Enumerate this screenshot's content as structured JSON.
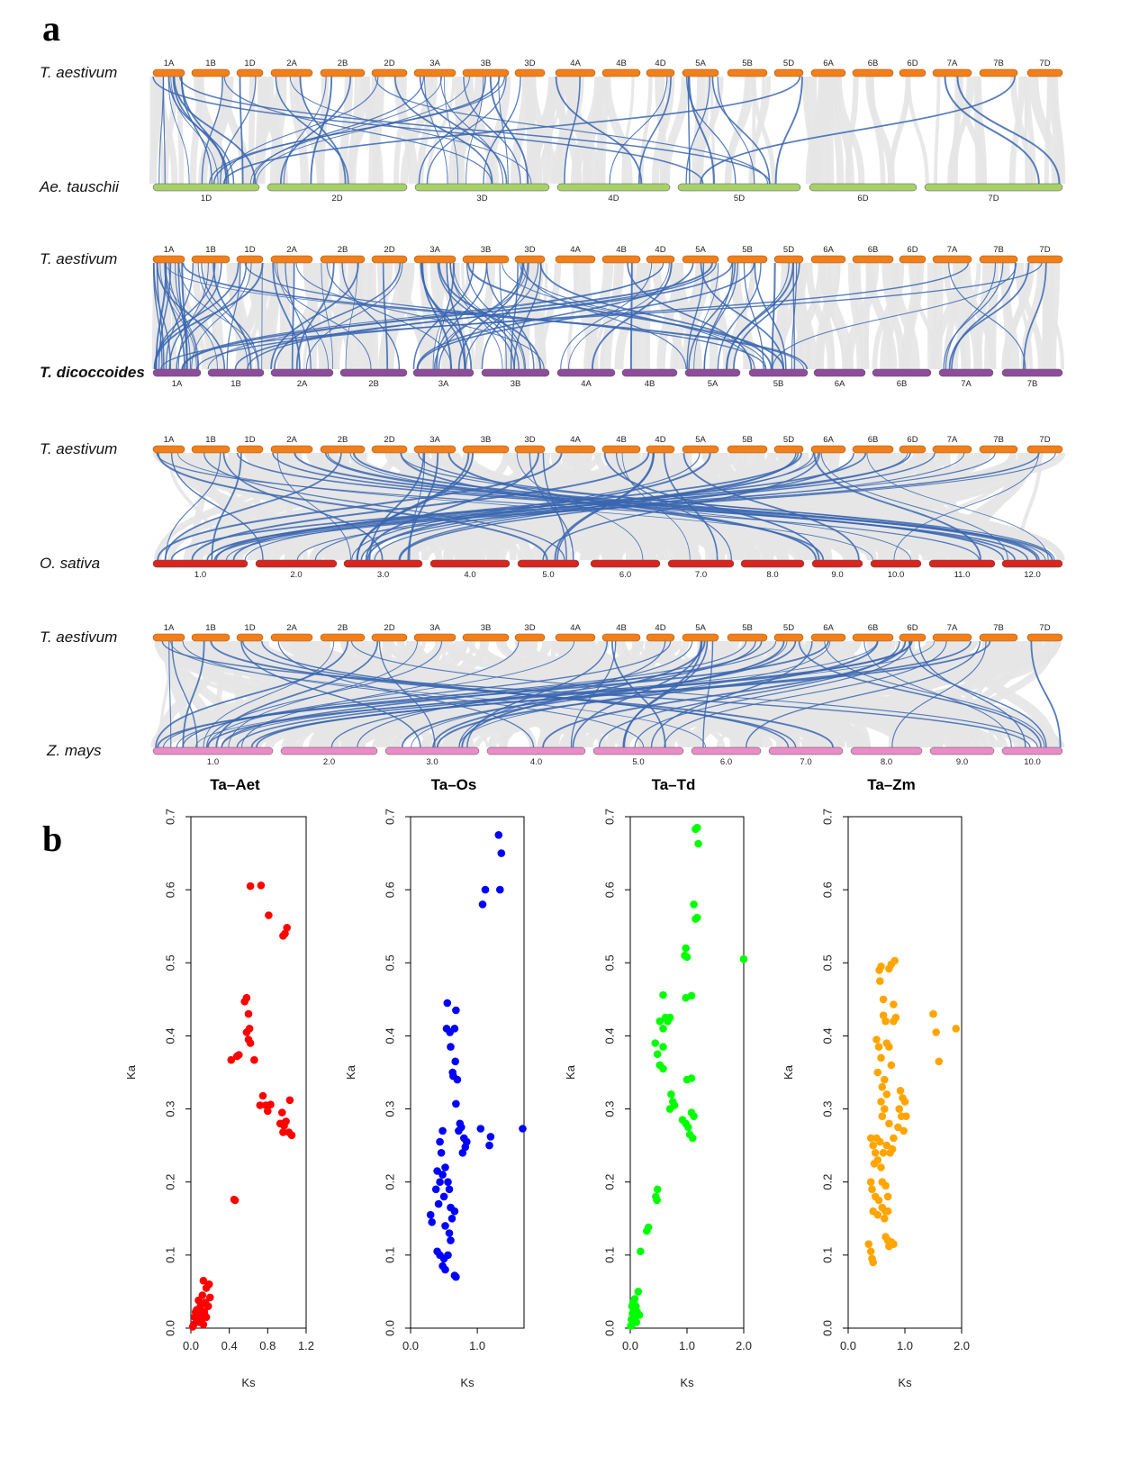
{
  "panel_labels": {
    "a": "a",
    "b": "b"
  },
  "colors": {
    "t_aestivum": "#f07f1c",
    "ae_tauschii": "#a6d06a",
    "t_dicoccoides": "#8e4c9c",
    "o_sativa": "#d9241f",
    "z_mays": "#ea8cc7",
    "link_highlight": "#3a66b0",
    "link_background": "#e6e6e6",
    "ta_aet": "#ff0000",
    "ta_os": "#0000ff",
    "ta_td": "#00ff00",
    "ta_zm": "#ffa500"
  },
  "synteny": {
    "t_aestivum_chromosomes": [
      "1A",
      "1B",
      "1D",
      "2A",
      "2B",
      "2D",
      "3A",
      "3B",
      "3D",
      "4A",
      "4B",
      "4D",
      "5A",
      "5B",
      "5D",
      "6A",
      "6B",
      "6D",
      "7A",
      "7B",
      "7D"
    ],
    "comparisons": [
      {
        "top_species": "T. aestivum",
        "bottom_species": "Ae. tauschii",
        "bottom_chromosomes": [
          "1D",
          "2D",
          "3D",
          "4D",
          "5D",
          "6D",
          "7D"
        ]
      },
      {
        "top_species": "T. aestivum",
        "bottom_species": "T. dicoccoides",
        "bottom_chromosomes": [
          "1A",
          "1B",
          "2A",
          "2B",
          "3A",
          "3B",
          "4A",
          "4B",
          "5A",
          "5B",
          "6A",
          "6B",
          "7A",
          "7B"
        ]
      },
      {
        "top_species": "T. aestivum",
        "bottom_species": "O. sativa",
        "bottom_chromosomes": [
          "1.0",
          "2.0",
          "3.0",
          "4.0",
          "5.0",
          "6.0",
          "7.0",
          "8.0",
          "9.0",
          "10.0",
          "11.0",
          "12.0"
        ]
      },
      {
        "top_species": "T. aestivum",
        "bottom_species": "Z. mays",
        "bottom_chromosomes": [
          "1.0",
          "2.0",
          "3.0",
          "4.0",
          "5.0",
          "6.0",
          "7.0",
          "8.0",
          "9.0",
          "10.0"
        ]
      }
    ]
  },
  "chart_data": [
    {
      "type": "scatter",
      "title": "Ta–Aet",
      "xlabel": "Ks",
      "ylabel": "Ka",
      "xlim": [
        0,
        1.2
      ],
      "ylim": [
        0,
        0.7
      ],
      "xticks": [
        "0.0",
        "0.4",
        "0.8",
        "1.2"
      ],
      "yticks": [
        "0.0",
        "0.1",
        "0.2",
        "0.3",
        "0.4",
        "0.5",
        "0.6",
        "0.7"
      ],
      "points": [
        [
          0.62,
          0.605
        ],
        [
          0.73,
          0.606
        ],
        [
          0.81,
          0.565
        ],
        [
          0.98,
          0.54
        ],
        [
          1.0,
          0.548
        ],
        [
          0.96,
          0.537
        ],
        [
          0.58,
          0.452
        ],
        [
          0.56,
          0.447
        ],
        [
          0.6,
          0.43
        ],
        [
          0.61,
          0.41
        ],
        [
          0.58,
          0.405
        ],
        [
          0.6,
          0.395
        ],
        [
          0.62,
          0.39
        ],
        [
          0.48,
          0.372
        ],
        [
          0.42,
          0.367
        ],
        [
          0.66,
          0.367
        ],
        [
          0.5,
          0.374
        ],
        [
          0.75,
          0.318
        ],
        [
          0.72,
          0.305
        ],
        [
          0.78,
          0.305
        ],
        [
          0.83,
          0.306
        ],
        [
          0.8,
          0.297
        ],
        [
          1.03,
          0.312
        ],
        [
          0.95,
          0.295
        ],
        [
          0.93,
          0.28
        ],
        [
          0.97,
          0.277
        ],
        [
          0.96,
          0.268
        ],
        [
          1.02,
          0.268
        ],
        [
          1.05,
          0.264
        ],
        [
          0.99,
          0.283
        ],
        [
          0.45,
          0.176
        ],
        [
          0.46,
          0.175
        ],
        [
          0.13,
          0.065
        ],
        [
          0.19,
          0.06
        ],
        [
          0.16,
          0.055
        ],
        [
          0.2,
          0.042
        ],
        [
          0.12,
          0.045
        ],
        [
          0.08,
          0.038
        ],
        [
          0.15,
          0.035
        ],
        [
          0.18,
          0.03
        ],
        [
          0.1,
          0.03
        ],
        [
          0.06,
          0.025
        ],
        [
          0.14,
          0.022
        ],
        [
          0.09,
          0.02
        ],
        [
          0.04,
          0.015
        ],
        [
          0.11,
          0.012
        ],
        [
          0.07,
          0.01
        ],
        [
          0.03,
          0.005
        ],
        [
          0.13,
          0.005
        ],
        [
          0.16,
          0.015
        ],
        [
          0.05,
          0.022
        ],
        [
          0.09,
          0.008
        ],
        [
          0.02,
          0.002
        ]
      ]
    },
    {
      "type": "scatter",
      "title": "Ta–Os",
      "xlabel": "Ks",
      "ylabel": "Ka",
      "xlim": [
        0,
        1.7
      ],
      "ylim": [
        0,
        0.7
      ],
      "xticks": [
        "0.0",
        "1.0"
      ],
      "yticks": [
        "0.0",
        "0.1",
        "0.2",
        "0.3",
        "0.4",
        "0.5",
        "0.6",
        "0.7"
      ],
      "points": [
        [
          1.32,
          0.675
        ],
        [
          1.36,
          0.65
        ],
        [
          1.34,
          0.6
        ],
        [
          1.12,
          0.6
        ],
        [
          1.08,
          0.58
        ],
        [
          1.68,
          0.273
        ],
        [
          0.55,
          0.445
        ],
        [
          0.68,
          0.435
        ],
        [
          0.54,
          0.41
        ],
        [
          0.59,
          0.405
        ],
        [
          0.66,
          0.41
        ],
        [
          0.6,
          0.385
        ],
        [
          0.67,
          0.365
        ],
        [
          0.63,
          0.35
        ],
        [
          0.7,
          0.34
        ],
        [
          0.64,
          0.345
        ],
        [
          0.68,
          0.307
        ],
        [
          0.74,
          0.28
        ],
        [
          0.76,
          0.275
        ],
        [
          0.72,
          0.27
        ],
        [
          1.05,
          0.273
        ],
        [
          0.8,
          0.26
        ],
        [
          1.2,
          0.262
        ],
        [
          1.18,
          0.25
        ],
        [
          0.82,
          0.248
        ],
        [
          0.78,
          0.24
        ],
        [
          0.84,
          0.255
        ],
        [
          0.48,
          0.27
        ],
        [
          0.44,
          0.255
        ],
        [
          0.46,
          0.24
        ],
        [
          0.52,
          0.22
        ],
        [
          0.4,
          0.215
        ],
        [
          0.48,
          0.21
        ],
        [
          0.44,
          0.2
        ],
        [
          0.38,
          0.19
        ],
        [
          0.5,
          0.18
        ],
        [
          0.42,
          0.17
        ],
        [
          0.56,
          0.2
        ],
        [
          0.58,
          0.19
        ],
        [
          0.6,
          0.165
        ],
        [
          0.66,
          0.16
        ],
        [
          0.62,
          0.15
        ],
        [
          0.3,
          0.155
        ],
        [
          0.32,
          0.145
        ],
        [
          0.52,
          0.14
        ],
        [
          0.58,
          0.13
        ],
        [
          0.6,
          0.12
        ],
        [
          0.4,
          0.105
        ],
        [
          0.44,
          0.1
        ],
        [
          0.5,
          0.095
        ],
        [
          0.56,
          0.1
        ],
        [
          0.48,
          0.085
        ],
        [
          0.52,
          0.08
        ],
        [
          0.68,
          0.07
        ],
        [
          0.66,
          0.072
        ]
      ]
    },
    {
      "type": "scatter",
      "title": "Ta–Td",
      "xlabel": "Ks",
      "ylabel": "Ka",
      "xlim": [
        0,
        2.0
      ],
      "ylim": [
        0,
        0.7
      ],
      "xticks": [
        "0.0",
        "1.0",
        "2.0"
      ],
      "yticks": [
        "0.0",
        "0.1",
        "0.2",
        "0.3",
        "0.4",
        "0.5",
        "0.6",
        "0.7"
      ],
      "points": [
        [
          1.15,
          0.683
        ],
        [
          1.18,
          0.685
        ],
        [
          1.2,
          0.663
        ],
        [
          1.12,
          0.58
        ],
        [
          1.15,
          0.56
        ],
        [
          1.18,
          0.562
        ],
        [
          2.0,
          0.505
        ],
        [
          0.98,
          0.52
        ],
        [
          0.96,
          0.51
        ],
        [
          1.0,
          0.508
        ],
        [
          1.08,
          0.455
        ],
        [
          0.98,
          0.452
        ],
        [
          0.58,
          0.456
        ],
        [
          0.62,
          0.425
        ],
        [
          0.66,
          0.42
        ],
        [
          0.52,
          0.42
        ],
        [
          0.58,
          0.41
        ],
        [
          0.7,
          0.425
        ],
        [
          0.44,
          0.39
        ],
        [
          0.58,
          0.385
        ],
        [
          0.48,
          0.375
        ],
        [
          0.52,
          0.36
        ],
        [
          0.58,
          0.355
        ],
        [
          0.72,
          0.32
        ],
        [
          0.75,
          0.31
        ],
        [
          0.7,
          0.3
        ],
        [
          0.78,
          0.305
        ],
        [
          1.0,
          0.34
        ],
        [
          1.08,
          0.342
        ],
        [
          0.92,
          0.285
        ],
        [
          0.98,
          0.28
        ],
        [
          1.02,
          0.275
        ],
        [
          1.08,
          0.295
        ],
        [
          1.12,
          0.29
        ],
        [
          1.05,
          0.265
        ],
        [
          1.1,
          0.26
        ],
        [
          0.48,
          0.19
        ],
        [
          0.45,
          0.18
        ],
        [
          0.47,
          0.175
        ],
        [
          0.32,
          0.138
        ],
        [
          0.29,
          0.133
        ],
        [
          0.18,
          0.105
        ],
        [
          0.14,
          0.05
        ],
        [
          0.08,
          0.04
        ],
        [
          0.05,
          0.035
        ],
        [
          0.1,
          0.03
        ],
        [
          0.03,
          0.03
        ],
        [
          0.06,
          0.025
        ],
        [
          0.12,
          0.022
        ],
        [
          0.04,
          0.02
        ],
        [
          0.16,
          0.018
        ],
        [
          0.09,
          0.015
        ],
        [
          0.02,
          0.012
        ],
        [
          0.07,
          0.01
        ],
        [
          0.11,
          0.008
        ],
        [
          0.03,
          0.005
        ],
        [
          0.01,
          0.003
        ]
      ]
    },
    {
      "type": "scatter",
      "title": "Ta–Zm",
      "xlabel": "Ks",
      "ylabel": "Ka",
      "xlim": [
        0,
        2.0
      ],
      "ylim": [
        0,
        0.7
      ],
      "xticks": [
        "0.0",
        "1.0",
        "2.0"
      ],
      "yticks": [
        "0.0",
        "0.1",
        "0.2",
        "0.3",
        "0.4",
        "0.5",
        "0.6",
        "0.7"
      ],
      "points": [
        [
          0.55,
          0.49
        ],
        [
          0.58,
          0.495
        ],
        [
          0.72,
          0.492
        ],
        [
          0.76,
          0.498
        ],
        [
          0.82,
          0.503
        ],
        [
          0.56,
          0.475
        ],
        [
          0.62,
          0.45
        ],
        [
          0.8,
          0.443
        ],
        [
          1.5,
          0.43
        ],
        [
          1.55,
          0.405
        ],
        [
          1.9,
          0.41
        ],
        [
          1.6,
          0.365
        ],
        [
          0.62,
          0.428
        ],
        [
          0.66,
          0.42
        ],
        [
          0.8,
          0.42
        ],
        [
          0.84,
          0.425
        ],
        [
          0.5,
          0.395
        ],
        [
          0.54,
          0.385
        ],
        [
          0.68,
          0.39
        ],
        [
          0.72,
          0.385
        ],
        [
          0.58,
          0.37
        ],
        [
          0.76,
          0.36
        ],
        [
          0.52,
          0.35
        ],
        [
          0.64,
          0.34
        ],
        [
          0.6,
          0.33
        ],
        [
          0.68,
          0.32
        ],
        [
          0.58,
          0.31
        ],
        [
          0.92,
          0.325
        ],
        [
          0.96,
          0.315
        ],
        [
          1.0,
          0.31
        ],
        [
          0.9,
          0.3
        ],
        [
          0.94,
          0.29
        ],
        [
          1.02,
          0.29
        ],
        [
          0.88,
          0.275
        ],
        [
          0.98,
          0.27
        ],
        [
          0.64,
          0.3
        ],
        [
          0.6,
          0.29
        ],
        [
          0.72,
          0.28
        ],
        [
          0.4,
          0.26
        ],
        [
          0.44,
          0.25
        ],
        [
          0.5,
          0.26
        ],
        [
          0.56,
          0.255
        ],
        [
          0.62,
          0.24
        ],
        [
          0.48,
          0.24
        ],
        [
          0.52,
          0.23
        ],
        [
          0.46,
          0.225
        ],
        [
          0.58,
          0.22
        ],
        [
          0.68,
          0.25
        ],
        [
          0.74,
          0.24
        ],
        [
          0.8,
          0.26
        ],
        [
          0.78,
          0.245
        ],
        [
          0.4,
          0.2
        ],
        [
          0.42,
          0.19
        ],
        [
          0.48,
          0.18
        ],
        [
          0.54,
          0.175
        ],
        [
          0.6,
          0.2
        ],
        [
          0.66,
          0.195
        ],
        [
          0.7,
          0.18
        ],
        [
          0.44,
          0.16
        ],
        [
          0.52,
          0.155
        ],
        [
          0.6,
          0.165
        ],
        [
          0.66,
          0.16
        ],
        [
          0.7,
          0.16
        ],
        [
          0.64,
          0.15
        ],
        [
          0.66,
          0.125
        ],
        [
          0.7,
          0.12
        ],
        [
          0.76,
          0.118
        ],
        [
          0.8,
          0.115
        ],
        [
          0.72,
          0.112
        ],
        [
          0.36,
          0.115
        ],
        [
          0.4,
          0.105
        ],
        [
          0.42,
          0.095
        ],
        [
          0.44,
          0.09
        ]
      ]
    }
  ]
}
